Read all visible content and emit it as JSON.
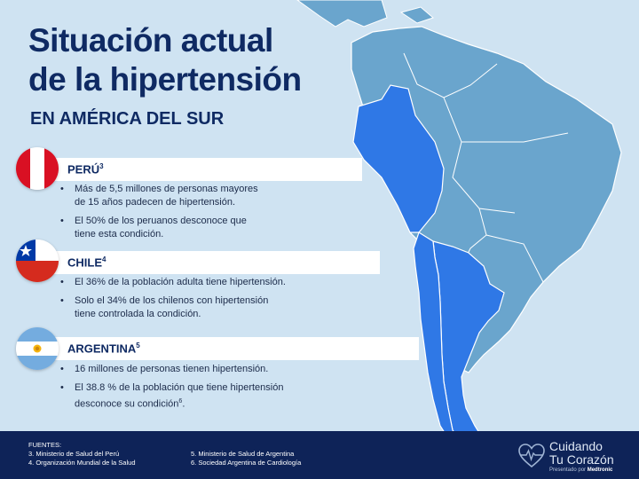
{
  "title_line1": "Situación actual",
  "title_line2": "de la hipertensión",
  "subtitle": "EN AMÉRICA DEL SUR",
  "colors": {
    "background": "#cfe3f2",
    "map_land": "#6aa5cd",
    "map_highlight": "#2f78e6",
    "title": "#0f2a63",
    "footer": "#0e2358"
  },
  "countries": [
    {
      "name": "PERÚ",
      "ref": "3",
      "flag": "peru-flag-icon",
      "bullets": [
        {
          "text": "Más de 5,5 millones de personas mayores\nde 15 años padecen de hipertensión.",
          "ref": ""
        },
        {
          "text": "El 50% de los peruanos desconoce que\ntiene esta condición.",
          "ref": ""
        }
      ]
    },
    {
      "name": "CHILE",
      "ref": "4",
      "flag": "chile-flag-icon",
      "bullets": [
        {
          "text": "El 36% de la población adulta tiene hipertensión.",
          "ref": ""
        },
        {
          "text": "Solo el 34% de los chilenos con hipertensión\ntiene controlada la condición.",
          "ref": ""
        }
      ]
    },
    {
      "name": "ARGENTINA",
      "ref": "5",
      "flag": "argentina-flag-icon",
      "bullets": [
        {
          "text": "16 millones de personas tienen hipertensión.",
          "ref": ""
        },
        {
          "text": "El 38.8 % de la población que tiene hipertensión\ndesconoce su condición",
          "ref": "6"
        }
      ]
    }
  ],
  "footer": {
    "heading": "FUENTES:",
    "refs_left": [
      "3. Ministerio de Salud del Perú",
      "4. Organización Mundial de la Salud"
    ],
    "refs_right": [
      "5. Ministerio de Salud de Argentina",
      "6. Sociedad Argentina de Cardiología"
    ],
    "brand_line1": "Cuidando",
    "brand_line2": "Tu Corazón",
    "brand_presented": "Presentado por",
    "brand_company": "Medtronic",
    "brand_icon": "heart-pulse-icon"
  }
}
